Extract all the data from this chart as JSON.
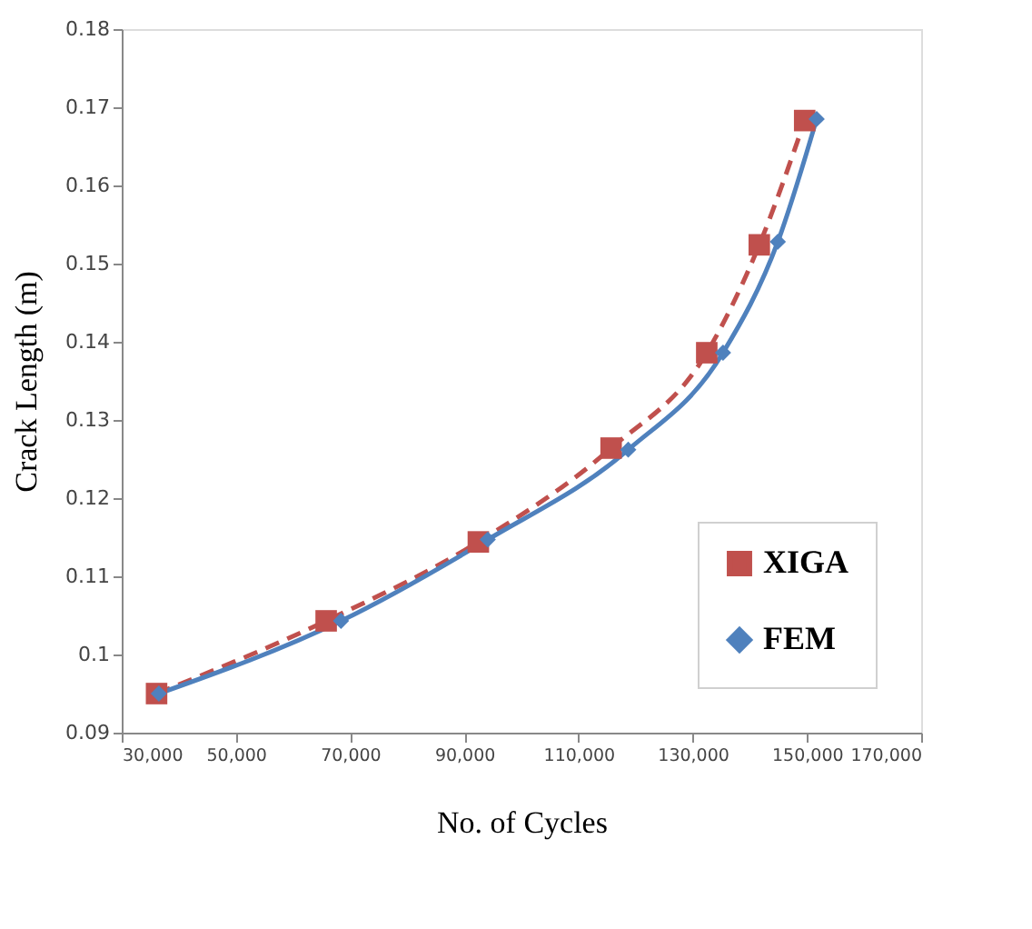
{
  "chart_data": {
    "type": "line",
    "xlabel": "No. of Cycles",
    "ylabel": "Crack Length (m)",
    "xlim": [
      30000,
      170000
    ],
    "xticks": [
      {
        "value": 30000,
        "label": "30,000"
      },
      {
        "value": 50000,
        "label": "50,000"
      },
      {
        "value": 70000,
        "label": "70,000"
      },
      {
        "value": 90000,
        "label": "90,000"
      },
      {
        "value": 110000,
        "label": "110,000"
      },
      {
        "value": 130000,
        "label": "130,000"
      },
      {
        "value": 150000,
        "label": "150,000"
      },
      {
        "value": 170000,
        "label": "170,000"
      }
    ],
    "ylim": [
      0.09,
      0.18
    ],
    "yticks": [
      0.09,
      0.1,
      0.11,
      0.12,
      0.13,
      0.14,
      0.15,
      0.16,
      0.17,
      0.18
    ],
    "grid": false,
    "legend": "bottom right",
    "series": [
      {
        "name": "XIGA",
        "color": "#c0504d",
        "marker": "square",
        "line_style": "dashed",
        "x": [
          36100,
          65800,
          92450,
          115700,
          132450,
          141650,
          149600
        ],
        "values": [
          0.095,
          0.1043,
          0.1144,
          0.1264,
          0.1386,
          0.1524,
          0.1683
        ]
      },
      {
        "name": "FEM",
        "color": "#4f81bd",
        "marker": "diamond",
        "line_style": "solid",
        "x": [
          36500,
          68400,
          94100,
          118700,
          135300,
          144900,
          151700
        ],
        "values": [
          0.095,
          0.1043,
          0.1147,
          0.1262,
          0.1386,
          0.1528,
          0.1685
        ]
      }
    ]
  }
}
